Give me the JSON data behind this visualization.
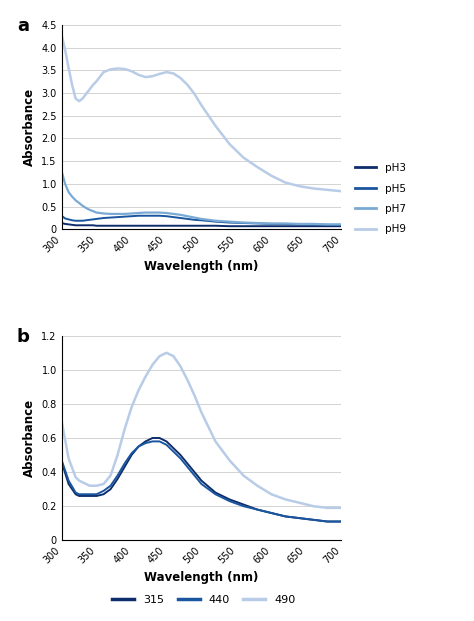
{
  "panel_a": {
    "title": "a",
    "xlabel": "Wavelength (nm)",
    "ylabel": "Absorbance",
    "xlim": [
      300,
      700
    ],
    "ylim": [
      0,
      4.5
    ],
    "yticks": [
      0,
      0.5,
      1.0,
      1.5,
      2.0,
      2.5,
      3.0,
      3.5,
      4.0,
      4.5
    ],
    "xticks": [
      300,
      350,
      400,
      450,
      500,
      550,
      600,
      650,
      700
    ],
    "legend": [
      "pH3",
      "pH5",
      "pH7",
      "pH9"
    ],
    "colors": [
      "#0d2d6b",
      "#1a56a0",
      "#7aaad4",
      "#b8cce8"
    ],
    "linewidths": [
      1.4,
      1.4,
      1.6,
      1.8
    ],
    "series": {
      "pH3": {
        "x": [
          300,
          305,
          310,
          315,
          320,
          325,
          330,
          335,
          340,
          345,
          350,
          360,
          370,
          380,
          390,
          400,
          410,
          420,
          430,
          440,
          450,
          460,
          470,
          480,
          490,
          500,
          520,
          540,
          560,
          580,
          600,
          620,
          640,
          660,
          680,
          700
        ],
        "y": [
          0.14,
          0.12,
          0.11,
          0.1,
          0.09,
          0.09,
          0.09,
          0.09,
          0.09,
          0.09,
          0.08,
          0.08,
          0.08,
          0.08,
          0.08,
          0.08,
          0.08,
          0.08,
          0.08,
          0.08,
          0.08,
          0.08,
          0.08,
          0.08,
          0.08,
          0.08,
          0.08,
          0.07,
          0.07,
          0.07,
          0.07,
          0.07,
          0.07,
          0.07,
          0.07,
          0.07
        ]
      },
      "pH5": {
        "x": [
          300,
          305,
          310,
          315,
          320,
          325,
          330,
          335,
          340,
          345,
          350,
          360,
          370,
          380,
          390,
          400,
          410,
          420,
          430,
          440,
          450,
          460,
          470,
          480,
          490,
          500,
          520,
          540,
          560,
          580,
          600,
          620,
          640,
          660,
          680,
          700
        ],
        "y": [
          0.3,
          0.24,
          0.22,
          0.2,
          0.19,
          0.19,
          0.19,
          0.2,
          0.21,
          0.22,
          0.23,
          0.25,
          0.26,
          0.27,
          0.28,
          0.29,
          0.3,
          0.3,
          0.3,
          0.3,
          0.29,
          0.27,
          0.25,
          0.23,
          0.21,
          0.2,
          0.17,
          0.15,
          0.14,
          0.13,
          0.12,
          0.12,
          0.11,
          0.11,
          0.1,
          0.1
        ]
      },
      "pH7": {
        "x": [
          300,
          305,
          310,
          315,
          320,
          325,
          330,
          335,
          340,
          345,
          350,
          360,
          370,
          380,
          390,
          400,
          410,
          420,
          430,
          440,
          450,
          460,
          470,
          480,
          490,
          500,
          520,
          540,
          560,
          580,
          600,
          620,
          640,
          660,
          680,
          700
        ],
        "y": [
          1.28,
          1.0,
          0.82,
          0.72,
          0.64,
          0.58,
          0.52,
          0.47,
          0.43,
          0.4,
          0.37,
          0.35,
          0.34,
          0.34,
          0.34,
          0.35,
          0.36,
          0.37,
          0.37,
          0.37,
          0.36,
          0.34,
          0.32,
          0.29,
          0.26,
          0.23,
          0.19,
          0.17,
          0.15,
          0.14,
          0.13,
          0.13,
          0.12,
          0.12,
          0.11,
          0.11
        ]
      },
      "pH9": {
        "x": [
          300,
          305,
          310,
          315,
          320,
          325,
          330,
          335,
          340,
          345,
          350,
          355,
          360,
          370,
          380,
          390,
          400,
          410,
          420,
          430,
          440,
          450,
          460,
          470,
          480,
          490,
          500,
          520,
          540,
          560,
          580,
          600,
          620,
          640,
          660,
          680,
          700
        ],
        "y": [
          4.28,
          3.95,
          3.55,
          3.18,
          2.88,
          2.82,
          2.88,
          2.98,
          3.08,
          3.18,
          3.26,
          3.36,
          3.46,
          3.52,
          3.54,
          3.53,
          3.48,
          3.4,
          3.35,
          3.37,
          3.42,
          3.46,
          3.43,
          3.33,
          3.18,
          2.98,
          2.73,
          2.28,
          1.88,
          1.58,
          1.37,
          1.18,
          1.03,
          0.95,
          0.9,
          0.87,
          0.84
        ]
      }
    }
  },
  "panel_b": {
    "title": "b",
    "xlabel": "Wavelength (nm)",
    "ylabel": "Absorbance",
    "xlim": [
      300,
      700
    ],
    "ylim": [
      0,
      1.2
    ],
    "yticks": [
      0,
      0.2,
      0.4,
      0.6,
      0.8,
      1.0,
      1.2
    ],
    "xticks": [
      300,
      350,
      400,
      450,
      500,
      550,
      600,
      650,
      700
    ],
    "legend": [
      "315",
      "440",
      "490"
    ],
    "colors": [
      "#0d2d6b",
      "#1a56a0",
      "#b8cce8"
    ],
    "linewidths": [
      1.4,
      1.4,
      1.8
    ],
    "series": {
      "315": {
        "x": [
          300,
          310,
          320,
          325,
          330,
          335,
          340,
          345,
          350,
          360,
          370,
          380,
          390,
          400,
          410,
          420,
          430,
          440,
          450,
          460,
          470,
          480,
          490,
          500,
          520,
          540,
          560,
          580,
          600,
          620,
          640,
          660,
          680,
          700
        ],
        "y": [
          0.46,
          0.33,
          0.27,
          0.26,
          0.26,
          0.26,
          0.26,
          0.26,
          0.26,
          0.27,
          0.3,
          0.36,
          0.43,
          0.5,
          0.55,
          0.58,
          0.6,
          0.6,
          0.58,
          0.54,
          0.5,
          0.45,
          0.4,
          0.35,
          0.28,
          0.24,
          0.21,
          0.18,
          0.16,
          0.14,
          0.13,
          0.12,
          0.11,
          0.11
        ]
      },
      "440": {
        "x": [
          300,
          310,
          320,
          325,
          330,
          335,
          340,
          345,
          350,
          360,
          370,
          380,
          390,
          400,
          410,
          420,
          430,
          440,
          450,
          460,
          470,
          480,
          490,
          500,
          520,
          540,
          560,
          580,
          600,
          620,
          640,
          660,
          680,
          700
        ],
        "y": [
          0.47,
          0.35,
          0.28,
          0.27,
          0.27,
          0.27,
          0.27,
          0.27,
          0.27,
          0.29,
          0.32,
          0.38,
          0.45,
          0.51,
          0.55,
          0.57,
          0.58,
          0.58,
          0.56,
          0.52,
          0.48,
          0.43,
          0.38,
          0.33,
          0.27,
          0.23,
          0.2,
          0.18,
          0.16,
          0.14,
          0.13,
          0.12,
          0.11,
          0.11
        ]
      },
      "490": {
        "x": [
          300,
          310,
          320,
          325,
          330,
          335,
          340,
          345,
          350,
          360,
          370,
          380,
          390,
          400,
          410,
          420,
          430,
          440,
          450,
          460,
          470,
          480,
          490,
          500,
          520,
          540,
          560,
          580,
          600,
          620,
          640,
          660,
          680,
          700
        ],
        "y": [
          0.7,
          0.48,
          0.37,
          0.35,
          0.34,
          0.33,
          0.32,
          0.32,
          0.32,
          0.33,
          0.38,
          0.5,
          0.65,
          0.78,
          0.88,
          0.96,
          1.03,
          1.08,
          1.1,
          1.08,
          1.02,
          0.94,
          0.85,
          0.75,
          0.58,
          0.47,
          0.38,
          0.32,
          0.27,
          0.24,
          0.22,
          0.2,
          0.19,
          0.19
        ]
      }
    }
  },
  "background_color": "#ffffff",
  "grid_color": "#cccccc"
}
